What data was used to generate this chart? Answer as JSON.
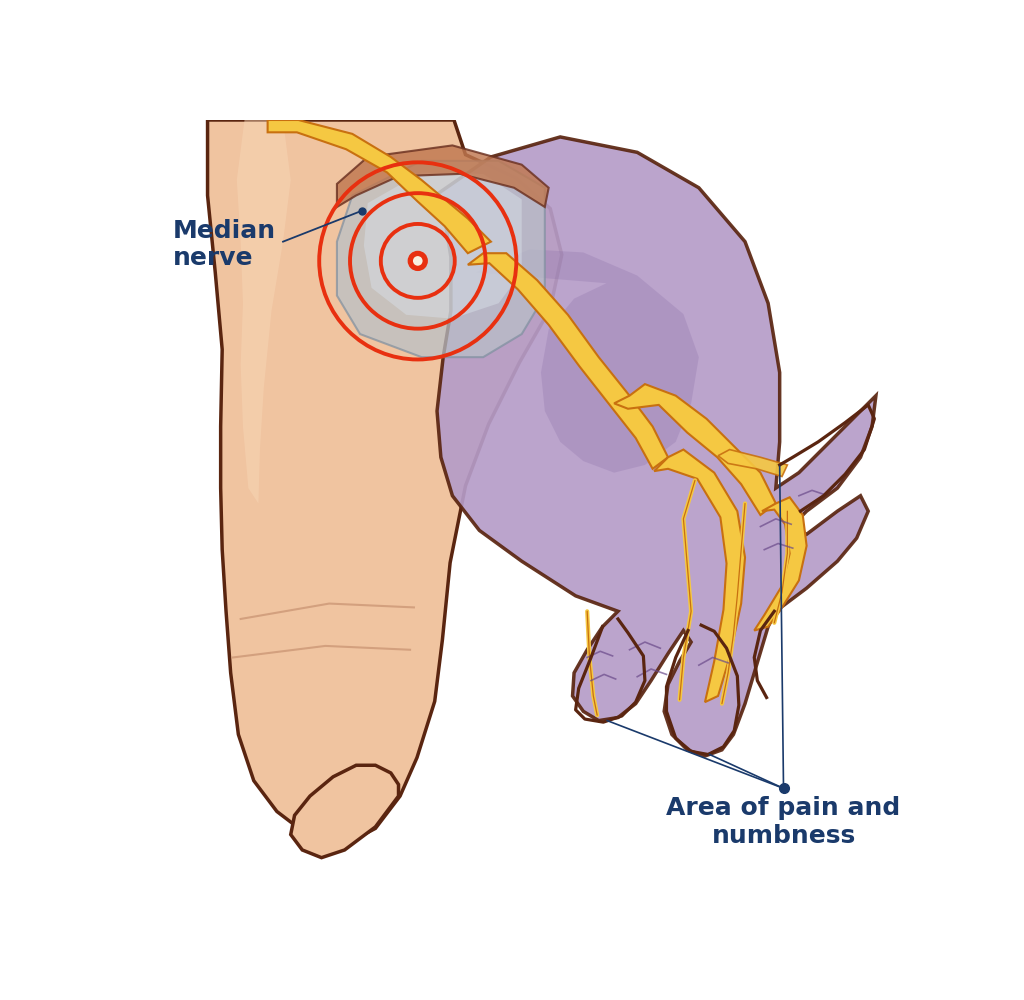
{
  "bg_color": "#ffffff",
  "skin_color": "#f0c4a0",
  "skin_dark": "#d4956a",
  "skin_shadow": "#e8b090",
  "purple_area": "#b59cc8",
  "purple_dark": "#8b6fa8",
  "purple_light": "#c8b0d8",
  "nerve_yellow": "#f5c842",
  "nerve_orange": "#e8a020",
  "nerve_dark": "#c87010",
  "red_circle": "#e83010",
  "annotation_color": "#1a3a6b",
  "label_median": "Median\nnerve",
  "label_pain": "Area of pain and\nnumbness",
  "label_fontsize": 18,
  "wrist_outline_color": "#5a2510",
  "muscle_gray": "#b8c0c8",
  "muscle_highlight": "#d8e0e8"
}
